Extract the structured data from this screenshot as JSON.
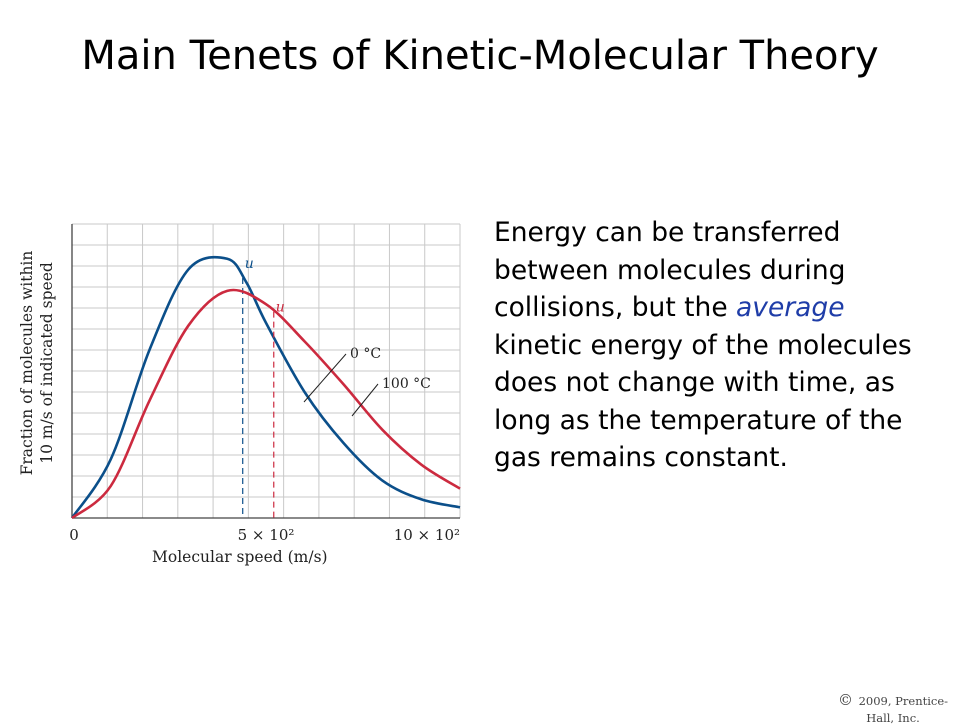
{
  "slide": {
    "title": "Main Tenets of Kinetic-Molecular Theory",
    "body_parts": [
      {
        "text": "Energy can be transferred between molecules during collisions, but the ",
        "emphasis": false
      },
      {
        "text": "average",
        "emphasis": true
      },
      {
        "text": " kinetic energy of the molecules does not change with time, as long as the temperature of the gas remains constant.",
        "emphasis": false
      }
    ],
    "copyright_symbol": "©",
    "copyright": "2009, Prentice-Hall, Inc."
  },
  "chart_data": {
    "type": "line",
    "xlabel": "Molecular speed (m/s)",
    "ylabel_lines": [
      "Fraction of molecules within",
      "10 m/s of indicated speed"
    ],
    "xlim": [
      0,
      1000
    ],
    "ylim": [
      0,
      1.1
    ],
    "x_ticks": [
      {
        "value": 0,
        "label": "0"
      },
      {
        "value": 500,
        "label": "5 × 10²"
      },
      {
        "value": 1000,
        "label": "10 × 10²"
      }
    ],
    "grid": true,
    "series": [
      {
        "name": "0 °C",
        "color": "#0b4f8a",
        "x": [
          0,
          100,
          200,
          300,
          400,
          450,
          500,
          600,
          700,
          800,
          900,
          1000
        ],
        "y": [
          0,
          0.22,
          0.63,
          0.93,
          0.97,
          0.88,
          0.73,
          0.47,
          0.28,
          0.14,
          0.07,
          0.04
        ],
        "mean_marker": {
          "x": 440,
          "label": "u"
        }
      },
      {
        "name": "100 °C",
        "color": "#cc2a3f",
        "x": [
          0,
          100,
          200,
          300,
          400,
          500,
          600,
          700,
          800,
          900,
          1000
        ],
        "y": [
          0,
          0.12,
          0.44,
          0.72,
          0.85,
          0.8,
          0.66,
          0.5,
          0.33,
          0.2,
          0.11
        ],
        "mean_marker": {
          "x": 520,
          "label": "u"
        }
      }
    ]
  }
}
